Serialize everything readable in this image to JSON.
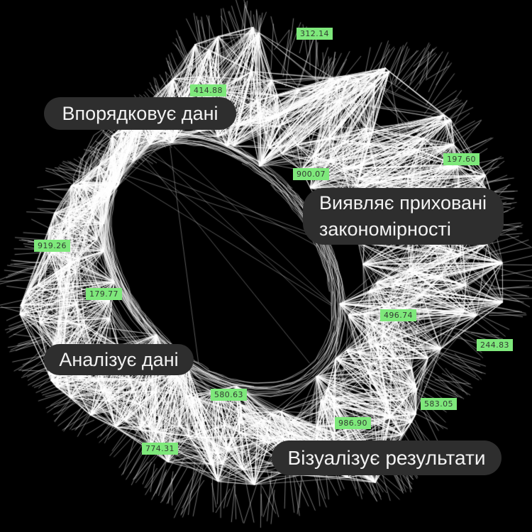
{
  "colors": {
    "background": "#000000",
    "network_line": "#ffffff",
    "badge_bg": "#7ee87b",
    "badge_text": "#313b31",
    "callout_bg": "#2e2e2e",
    "callout_text": "#f2f2f2"
  },
  "callouts": [
    {
      "id": "organizes-data",
      "text": "Впорядковує дані"
    },
    {
      "id": "detects-hidden-patterns",
      "text": "Виявляє приховані\nзакономірності"
    },
    {
      "id": "analyzes-data",
      "text": "Аналізує дані"
    },
    {
      "id": "visualizes-results",
      "text": "Візуалізує результати"
    }
  ],
  "value_badges": [
    {
      "value": "312.14"
    },
    {
      "value": "414.88"
    },
    {
      "value": "197.60"
    },
    {
      "value": "900.07"
    },
    {
      "value": "919.26"
    },
    {
      "value": "179.77"
    },
    {
      "value": "496.74"
    },
    {
      "value": "244.83"
    },
    {
      "value": "580.63"
    },
    {
      "value": "583.05"
    },
    {
      "value": "986.90"
    },
    {
      "value": "774.31"
    }
  ]
}
